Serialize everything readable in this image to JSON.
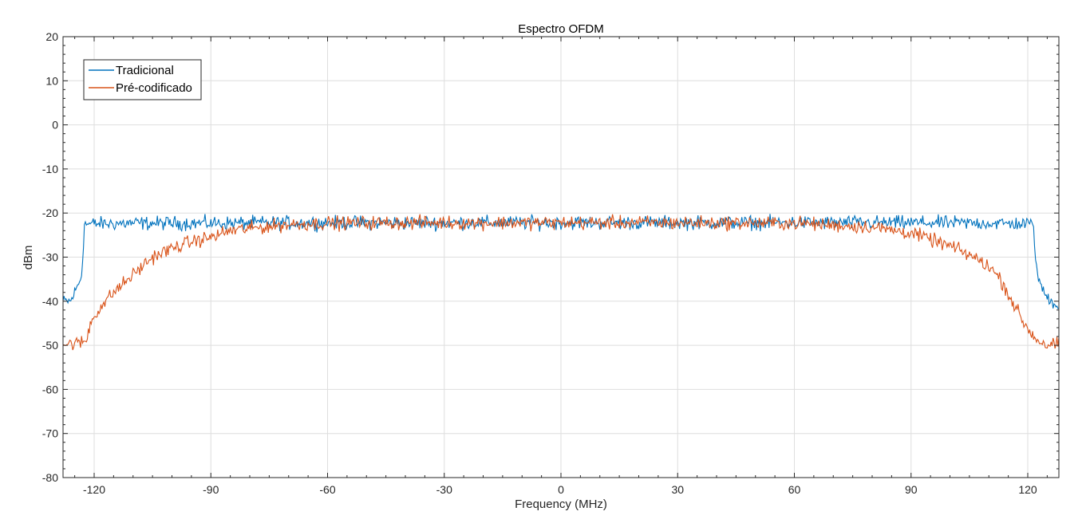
{
  "chart_data": {
    "type": "line",
    "title": "Espectro OFDM",
    "xlabel": "Frequency (MHz)",
    "ylabel": "dBm",
    "xlim": [
      -128,
      128
    ],
    "ylim": [
      -80,
      20
    ],
    "xticks": [
      -120,
      -90,
      -60,
      -30,
      0,
      30,
      60,
      90,
      120
    ],
    "yticks": [
      20,
      10,
      0,
      -10,
      -20,
      -30,
      -40,
      -50,
      -60,
      -70,
      -80
    ],
    "grid": true,
    "legend_position": "top-left",
    "series": [
      {
        "name": "Tradicional",
        "color": "#0072BD",
        "points": [
          [
            -128,
            -40
          ],
          [
            -126,
            -40
          ],
          [
            -124,
            -36
          ],
          [
            -123.2,
            -34
          ],
          [
            -122.5,
            -22.5
          ],
          [
            -110,
            -22.3
          ],
          [
            -90,
            -22.3
          ],
          [
            -60,
            -22.2
          ],
          [
            -30,
            -22.2
          ],
          [
            0,
            -22.2
          ],
          [
            30,
            -22.2
          ],
          [
            60,
            -22.2
          ],
          [
            90,
            -22.2
          ],
          [
            110,
            -22.3
          ],
          [
            121.5,
            -22.5
          ],
          [
            122.2,
            -33
          ],
          [
            124,
            -38
          ],
          [
            126,
            -40
          ],
          [
            128,
            -41
          ]
        ]
      },
      {
        "name": "Pré-codificado",
        "color": "#D95319",
        "points": [
          [
            -128,
            -49.8
          ],
          [
            -124,
            -49.5
          ],
          [
            -122,
            -49
          ],
          [
            -121,
            -45
          ],
          [
            -119,
            -42
          ],
          [
            -115,
            -38
          ],
          [
            -110,
            -34
          ],
          [
            -105,
            -30
          ],
          [
            -100,
            -28
          ],
          [
            -95,
            -26.5
          ],
          [
            -90,
            -25.5
          ],
          [
            -85,
            -24
          ],
          [
            -80,
            -23.5
          ],
          [
            -70,
            -22.6
          ],
          [
            -60,
            -22.3
          ],
          [
            -45,
            -22.2
          ],
          [
            -30,
            -22.2
          ],
          [
            0,
            -22.2
          ],
          [
            30,
            -22.2
          ],
          [
            60,
            -22.3
          ],
          [
            80,
            -23.2
          ],
          [
            90,
            -24.5
          ],
          [
            95,
            -26
          ],
          [
            100,
            -27.5
          ],
          [
            105,
            -29.5
          ],
          [
            110,
            -32
          ],
          [
            113,
            -35
          ],
          [
            116,
            -40
          ],
          [
            119,
            -45
          ],
          [
            122,
            -48.5
          ],
          [
            125,
            -50
          ],
          [
            128,
            -49.8
          ]
        ]
      }
    ]
  }
}
